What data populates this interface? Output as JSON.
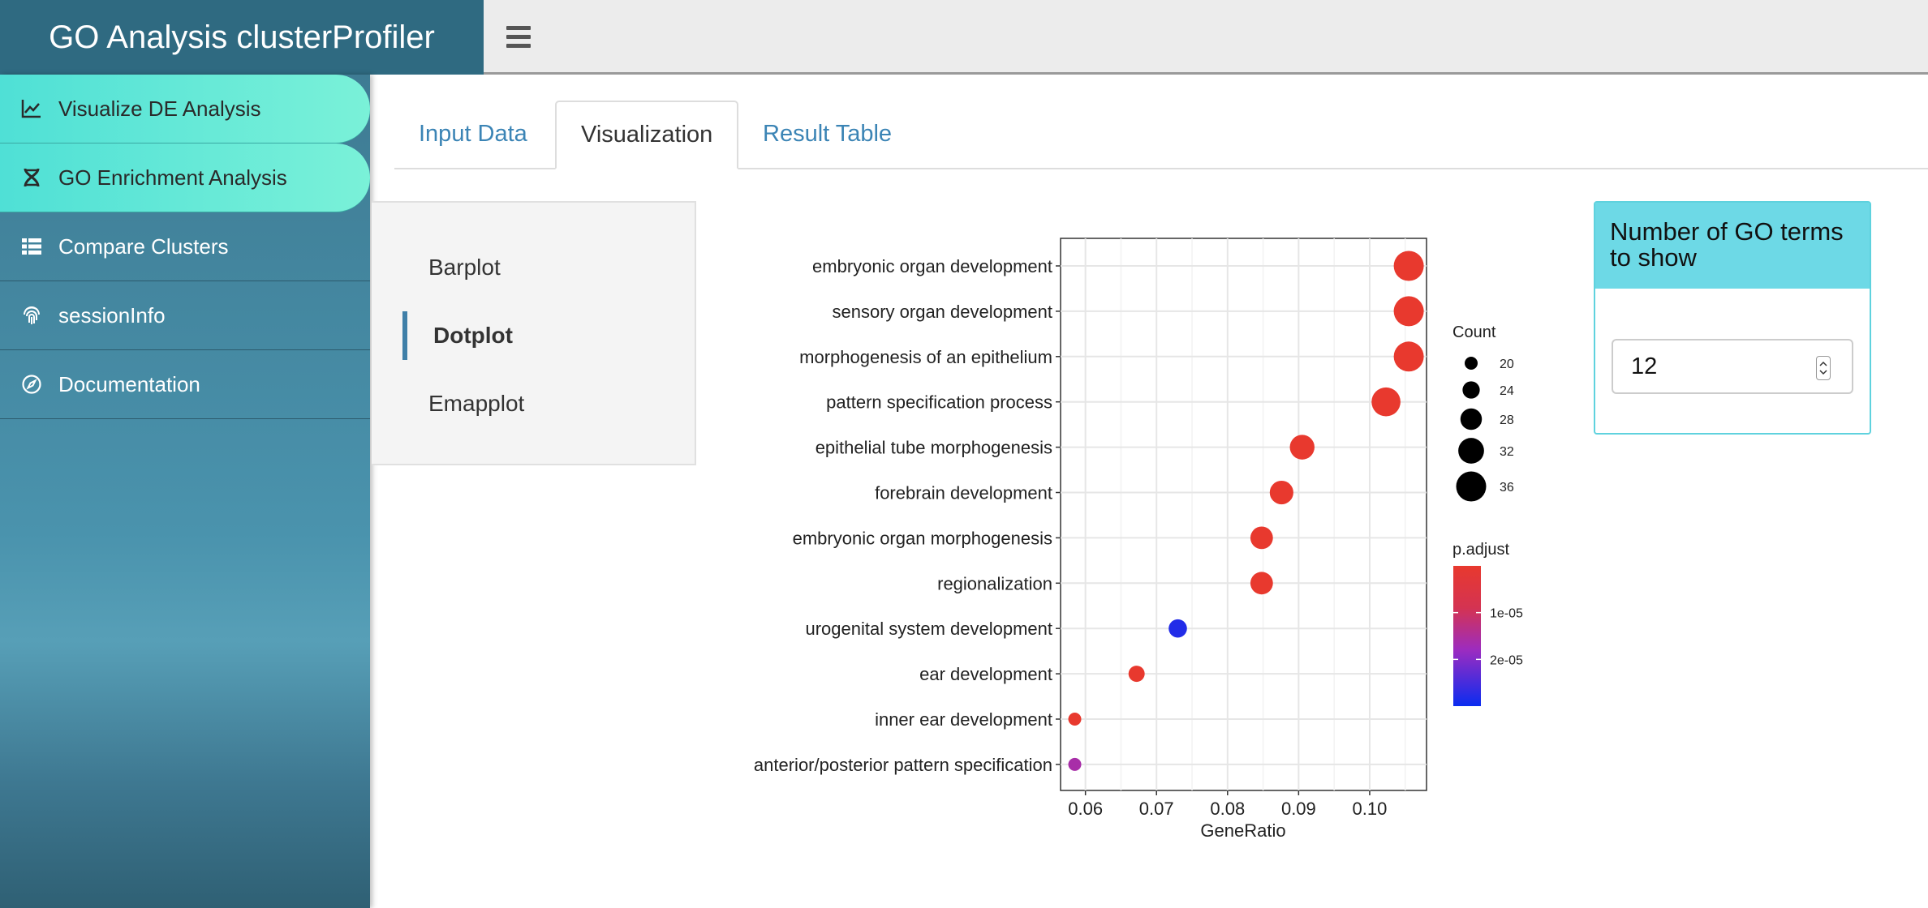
{
  "app": {
    "title": "GO Analysis clusterProfiler"
  },
  "header": {
    "menu_icon": "hamburger-icon"
  },
  "sidebar": {
    "items": [
      {
        "label": "Visualize DE Analysis",
        "icon": "line-chart-icon",
        "active": true
      },
      {
        "label": "GO Enrichment Analysis",
        "icon": "dna-icon",
        "active": true
      },
      {
        "label": "Compare Clusters",
        "icon": "table-list-icon",
        "active": false
      },
      {
        "label": "sessionInfo",
        "icon": "fingerprint-icon",
        "active": false
      },
      {
        "label": "Documentation",
        "icon": "compass-icon",
        "active": false
      }
    ]
  },
  "tabs": [
    {
      "label": "Input Data",
      "active": false
    },
    {
      "label": "Visualization",
      "active": true
    },
    {
      "label": "Result Table",
      "active": false
    }
  ],
  "plot_nav": [
    {
      "label": "Barplot",
      "active": false
    },
    {
      "label": "Dotplot",
      "active": true
    },
    {
      "label": "Emapplot",
      "active": false
    }
  ],
  "go_terms_box": {
    "title": "Number of GO terms to show",
    "value": "12"
  },
  "chart_data": {
    "type": "scatter",
    "xlabel": "GeneRatio",
    "ylabel": "",
    "xlim": [
      0.0565,
      0.108
    ],
    "xticks": [
      0.06,
      0.07,
      0.08,
      0.09,
      0.1
    ],
    "xtick_labels": [
      "0.06",
      "0.07",
      "0.08",
      "0.09",
      "0.10"
    ],
    "terms": [
      {
        "label": "embryonic organ development",
        "x": 0.1055,
        "count": 36,
        "p_adjust": 1e-07
      },
      {
        "label": "sensory organ development",
        "x": 0.1055,
        "count": 36,
        "p_adjust": 1e-07
      },
      {
        "label": "morphogenesis of an epithelium",
        "x": 0.1055,
        "count": 36,
        "p_adjust": 1e-07
      },
      {
        "label": "pattern specification process",
        "x": 0.1023,
        "count": 35,
        "p_adjust": 1e-07
      },
      {
        "label": "epithelial tube morphogenesis",
        "x": 0.0905,
        "count": 31,
        "p_adjust": 1e-07
      },
      {
        "label": "forebrain development",
        "x": 0.0876,
        "count": 30,
        "p_adjust": 1e-07
      },
      {
        "label": "embryonic organ morphogenesis",
        "x": 0.0848,
        "count": 29,
        "p_adjust": 1e-07
      },
      {
        "label": "regionalization",
        "x": 0.0848,
        "count": 29,
        "p_adjust": 1e-07
      },
      {
        "label": "urogenital system development",
        "x": 0.073,
        "count": 25,
        "p_adjust": 2.8e-05
      },
      {
        "label": "ear development",
        "x": 0.0672,
        "count": 23,
        "p_adjust": 1e-07
      },
      {
        "label": "inner ear development",
        "x": 0.0585,
        "count": 20,
        "p_adjust": 1e-07
      },
      {
        "label": "anterior/posterior pattern specification",
        "x": 0.0585,
        "count": 20,
        "p_adjust": 1.6e-05
      }
    ],
    "size_legend": {
      "title": "Count",
      "values": [
        20,
        24,
        28,
        32,
        36
      ],
      "labels": [
        "20",
        "24",
        "28",
        "32",
        "36"
      ]
    },
    "color_legend": {
      "title": "p.adjust",
      "range": [
        0,
        3e-05
      ],
      "ticks": [
        1e-05,
        2e-05
      ],
      "tick_labels": [
        "1e-05",
        "2e-05"
      ],
      "low_color": "#e8392e",
      "high_color": "#0a2cf0"
    }
  }
}
